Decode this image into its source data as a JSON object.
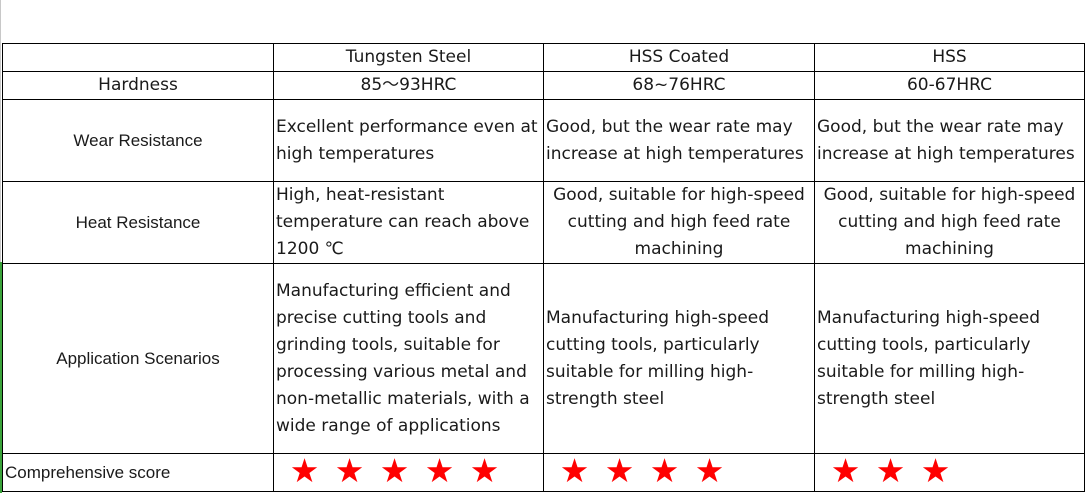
{
  "columns": [
    "",
    "Tungsten Steel",
    "HSS Coated",
    "HSS"
  ],
  "rows": [
    {
      "label": "Hardness",
      "cells": [
        "85～93HRC",
        "68~76HRC",
        "60-67HRC"
      ]
    },
    {
      "label": "Wear Resistance",
      "cells": [
        "Excellent performance even at high temperatures",
        "Good, but the wear rate may increase at high temperatures",
        "Good, but the wear rate may increase at high temperatures"
      ]
    },
    {
      "label": "Heat Resistance",
      "cells": [
        "High, heat-resistant temperature can reach above 1200 ℃",
        "Good, suitable for high-speed cutting and high feed rate machining",
        "Good, suitable for high-speed cutting and high feed rate machining"
      ]
    },
    {
      "label": "Application Scenarios",
      "cells": [
        "Manufacturing efficient and precise cutting tools and grinding tools, suitable for processing various metal and non-metallic materials, with a wide range of applications",
        "Manufacturing high-speed cutting tools, particularly suitable for milling high-strength steel",
        "Manufacturing high-speed cutting tools, particularly suitable for milling high-strength steel"
      ]
    }
  ],
  "score": {
    "label": "Comprehensive score",
    "values": [
      5,
      4,
      3
    ],
    "max": 5,
    "star_color": "#ff0000",
    "icon": "star-icon"
  }
}
